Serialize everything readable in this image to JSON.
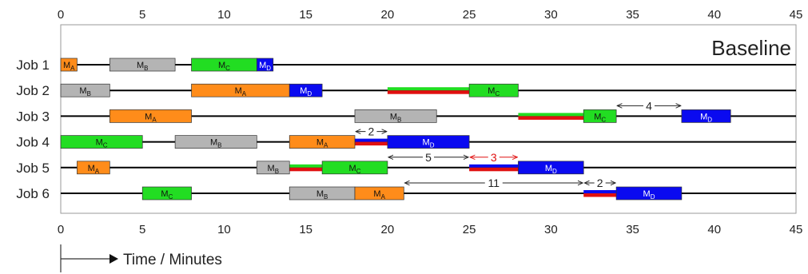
{
  "chart_data": {
    "type": "gantt",
    "title": "Baseline",
    "xlabel": "Time / Minutes",
    "xlim": [
      0,
      45
    ],
    "xticks": [
      0,
      5,
      10,
      15,
      20,
      25,
      30,
      35,
      40,
      45
    ],
    "grid": false,
    "colors": {
      "MA": "#ff8c1a",
      "MB": "#b4b4b4",
      "MC": "#22dd22",
      "MD": "#0a0af0",
      "wait_red": "#e01010",
      "gap_red": "#e01010",
      "gap_black": "#222222"
    },
    "jobs": [
      {
        "label": "Job 1",
        "tasks": [
          {
            "machine": "MA",
            "label": "M",
            "sub": "A",
            "start": 0,
            "end": 1
          },
          {
            "machine": "MB",
            "label": "M",
            "sub": "B",
            "start": 3,
            "end": 7
          },
          {
            "machine": "MC",
            "label": "M",
            "sub": "C",
            "start": 8,
            "end": 12
          },
          {
            "machine": "MD",
            "label": "M",
            "sub": "D",
            "start": 12,
            "end": 13
          }
        ],
        "waits": [],
        "gaps": []
      },
      {
        "label": "Job 2",
        "tasks": [
          {
            "machine": "MB",
            "label": "M",
            "sub": "B",
            "start": 0,
            "end": 3
          },
          {
            "machine": "MA",
            "label": "M",
            "sub": "A",
            "start": 8,
            "end": 14
          },
          {
            "machine": "MD",
            "label": "M",
            "sub": "D",
            "start": 14,
            "end": 16
          },
          {
            "machine": "MC",
            "label": "M",
            "sub": "C",
            "start": 25,
            "end": 28
          }
        ],
        "waits": [
          {
            "start": 20,
            "end": 25,
            "top": "MC"
          }
        ],
        "gaps": []
      },
      {
        "label": "Job 3",
        "tasks": [
          {
            "machine": "MA",
            "label": "M",
            "sub": "A",
            "start": 3,
            "end": 8
          },
          {
            "machine": "MB",
            "label": "M",
            "sub": "B",
            "start": 18,
            "end": 23
          },
          {
            "machine": "MC",
            "label": "M",
            "sub": "C",
            "start": 32,
            "end": 34
          },
          {
            "machine": "MD",
            "label": "M",
            "sub": "D",
            "start": 38,
            "end": 41
          }
        ],
        "waits": [
          {
            "start": 28,
            "end": 32,
            "top": "MC"
          }
        ],
        "gaps": [
          {
            "start": 34,
            "end": 38,
            "label": "4",
            "color": "gap_black"
          }
        ]
      },
      {
        "label": "Job 4",
        "tasks": [
          {
            "machine": "MC",
            "label": "M",
            "sub": "C",
            "start": 0,
            "end": 5
          },
          {
            "machine": "MB",
            "label": "M",
            "sub": "B",
            "start": 7,
            "end": 12
          },
          {
            "machine": "MA",
            "label": "M",
            "sub": "A",
            "start": 14,
            "end": 18
          },
          {
            "machine": "MD",
            "label": "M",
            "sub": "D",
            "start": 20,
            "end": 25
          }
        ],
        "waits": [
          {
            "start": 18,
            "end": 20,
            "top": "MD"
          }
        ],
        "gaps": [
          {
            "start": 18,
            "end": 20,
            "label": "2",
            "color": "gap_black"
          }
        ]
      },
      {
        "label": "Job 5",
        "tasks": [
          {
            "machine": "MA",
            "label": "M",
            "sub": "A",
            "start": 1,
            "end": 3
          },
          {
            "machine": "MB",
            "label": "M",
            "sub": "B",
            "start": 12,
            "end": 14
          },
          {
            "machine": "MC",
            "label": "M",
            "sub": "C",
            "start": 16,
            "end": 20
          },
          {
            "machine": "MD",
            "label": "M",
            "sub": "D",
            "start": 28,
            "end": 32
          }
        ],
        "waits": [
          {
            "start": 14,
            "end": 16,
            "top": "MC"
          },
          {
            "start": 25,
            "end": 28,
            "top": "MD"
          }
        ],
        "gaps": [
          {
            "start": 20,
            "end": 25,
            "label": "5",
            "color": "gap_black"
          },
          {
            "start": 25,
            "end": 28,
            "label": "3",
            "color": "gap_red"
          }
        ]
      },
      {
        "label": "Job 6",
        "tasks": [
          {
            "machine": "MC",
            "label": "M",
            "sub": "C",
            "start": 5,
            "end": 8
          },
          {
            "machine": "MB",
            "label": "M",
            "sub": "B",
            "start": 14,
            "end": 18
          },
          {
            "machine": "MA",
            "label": "M",
            "sub": "A",
            "start": 18,
            "end": 21
          },
          {
            "machine": "MD",
            "label": "M",
            "sub": "D",
            "start": 34,
            "end": 38
          }
        ],
        "waits": [
          {
            "start": 32,
            "end": 34,
            "top": "MD"
          }
        ],
        "gaps": [
          {
            "start": 21,
            "end": 32,
            "label": "11",
            "color": "gap_black"
          },
          {
            "start": 32,
            "end": 34,
            "label": "2",
            "color": "gap_black"
          }
        ]
      }
    ]
  }
}
